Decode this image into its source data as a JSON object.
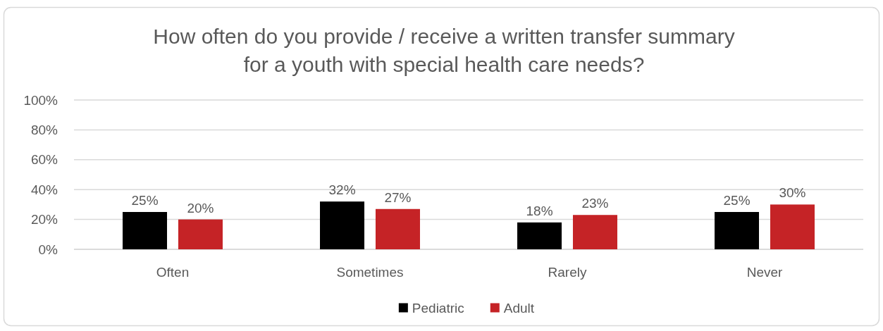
{
  "chart_data": {
    "type": "bar",
    "title": "How often do you provide / receive a written transfer summary for a youth with special health care needs?",
    "categories": [
      "Often",
      "Sometimes",
      "Rarely",
      "Never"
    ],
    "series": [
      {
        "name": "Pediatric",
        "color": "#000000",
        "values": [
          25,
          32,
          18,
          25
        ],
        "value_labels": [
          "25%",
          "32%",
          "18%",
          "25%"
        ]
      },
      {
        "name": "Adult",
        "color": "#c52326",
        "values": [
          20,
          27,
          23,
          30
        ],
        "value_labels": [
          "20%",
          "27%",
          "23%",
          "30%"
        ]
      }
    ],
    "ylim": [
      0,
      100
    ],
    "yticks": [
      {
        "value": 0,
        "label": "0%"
      },
      {
        "value": 20,
        "label": "20%"
      },
      {
        "value": 40,
        "label": "40%"
      },
      {
        "value": 60,
        "label": "60%"
      },
      {
        "value": 80,
        "label": "80%"
      },
      {
        "value": 100,
        "label": "100%"
      }
    ],
    "grid": "y",
    "legend": "bottom"
  }
}
